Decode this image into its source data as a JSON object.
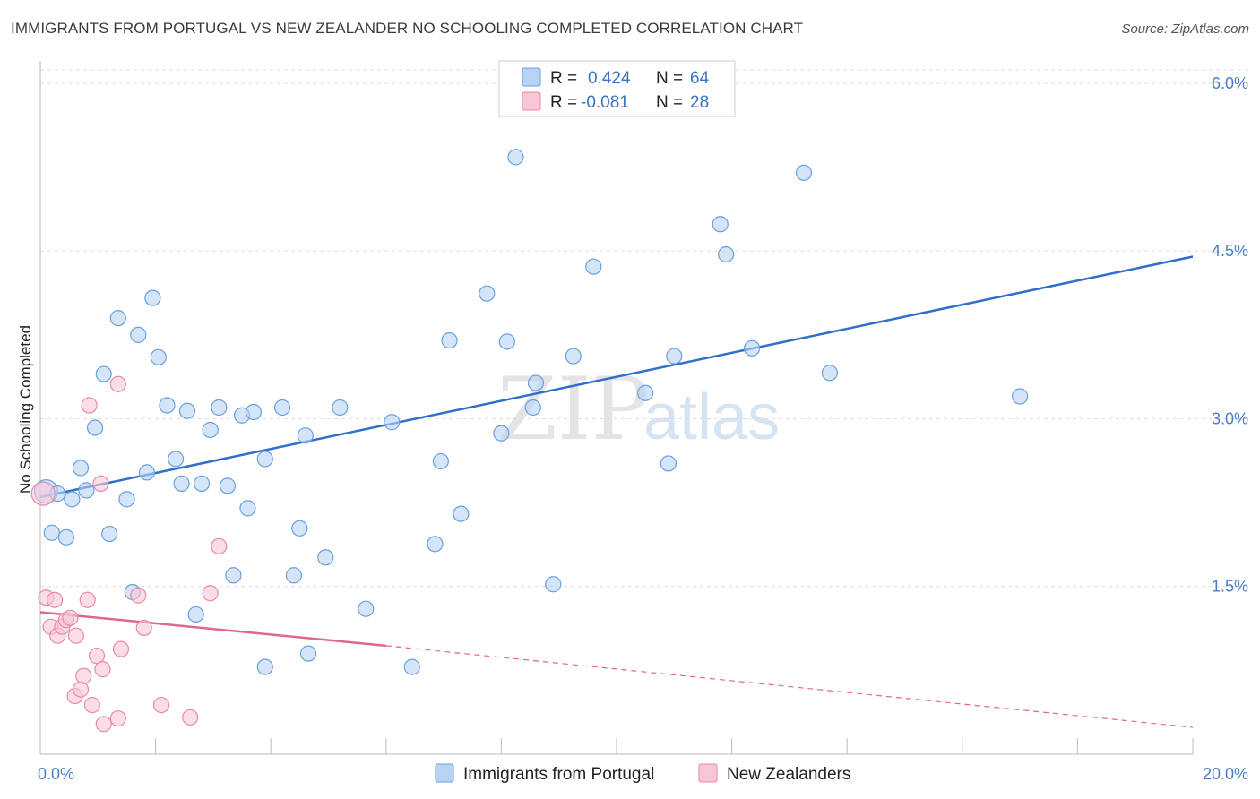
{
  "header": {
    "title": "IMMIGRANTS FROM PORTUGAL VS NEW ZEALANDER NO SCHOOLING COMPLETED CORRELATION CHART",
    "source": "Source: ZipAtlas.com"
  },
  "watermark": {
    "zip": "ZIP",
    "atlas": "atlas"
  },
  "legend": {
    "rows": [
      {
        "r_label": "R =",
        "r_value": "0.424",
        "n_label": "N =",
        "n_value": "64"
      },
      {
        "r_label": "R =",
        "r_value": "-0.081",
        "n_label": "N =",
        "n_value": "28"
      }
    ]
  },
  "colors": {
    "blue_fill": "#b8d4f5",
    "blue_stroke": "#6a9fdc",
    "blue_line": "#2f6ecb",
    "pink_fill": "#f8c6d6",
    "pink_stroke": "#e88aa8",
    "pink_line": "#e06690",
    "tick_text": "#4a7cc7",
    "grid": "#dddddd"
  },
  "chart_data": {
    "type": "scatter",
    "title": "IMMIGRANTS FROM PORTUGAL VS NEW ZEALANDER NO SCHOOLING COMPLETED CORRELATION CHART",
    "xlabel": "",
    "ylabel": "No Schooling Completed",
    "xlim": [
      0,
      20
    ],
    "ylim": [
      0,
      6.2
    ],
    "x_tick_labels": [
      "0.0%",
      "20.0%"
    ],
    "y_ticks": [
      1.5,
      3.0,
      4.5,
      6.0
    ],
    "y_tick_labels": [
      "1.5%",
      "3.0%",
      "4.5%",
      "6.0%"
    ],
    "grid": true,
    "legend_position": "top-center",
    "series": [
      {
        "name": "Immigrants from Portugal",
        "color": "#6a9fdc",
        "r": 0.424,
        "n": 64,
        "trend": {
          "x": [
            0,
            20
          ],
          "y": [
            2.3,
            4.45
          ]
        },
        "points": [
          [
            0.1,
            2.35
          ],
          [
            0.3,
            2.33
          ],
          [
            0.2,
            1.98
          ],
          [
            0.45,
            1.94
          ],
          [
            0.55,
            2.28
          ],
          [
            0.7,
            2.56
          ],
          [
            0.8,
            2.36
          ],
          [
            0.95,
            2.92
          ],
          [
            1.1,
            3.4
          ],
          [
            1.2,
            1.97
          ],
          [
            1.35,
            3.9
          ],
          [
            1.5,
            2.28
          ],
          [
            1.6,
            1.45
          ],
          [
            1.7,
            3.75
          ],
          [
            1.85,
            2.52
          ],
          [
            1.95,
            4.08
          ],
          [
            2.05,
            3.55
          ],
          [
            2.2,
            3.12
          ],
          [
            2.35,
            2.64
          ],
          [
            2.45,
            2.42
          ],
          [
            2.55,
            3.07
          ],
          [
            2.7,
            1.25
          ],
          [
            2.8,
            2.42
          ],
          [
            2.95,
            2.9
          ],
          [
            3.1,
            3.1
          ],
          [
            3.25,
            2.4
          ],
          [
            3.35,
            1.6
          ],
          [
            3.5,
            3.03
          ],
          [
            3.6,
            2.2
          ],
          [
            3.7,
            3.06
          ],
          [
            3.9,
            0.78
          ],
          [
            3.9,
            2.64
          ],
          [
            4.2,
            3.1
          ],
          [
            4.4,
            1.6
          ],
          [
            4.5,
            2.02
          ],
          [
            4.6,
            2.85
          ],
          [
            4.65,
            0.9
          ],
          [
            4.95,
            1.76
          ],
          [
            5.2,
            3.1
          ],
          [
            5.65,
            1.3
          ],
          [
            6.1,
            2.97
          ],
          [
            6.45,
            0.78
          ],
          [
            6.85,
            1.88
          ],
          [
            6.95,
            2.62
          ],
          [
            7.1,
            3.7
          ],
          [
            7.3,
            2.15
          ],
          [
            7.75,
            4.12
          ],
          [
            8.0,
            2.87
          ],
          [
            8.1,
            3.69
          ],
          [
            8.25,
            5.34
          ],
          [
            8.55,
            3.1
          ],
          [
            8.6,
            3.32
          ],
          [
            8.9,
            1.52
          ],
          [
            9.25,
            3.56
          ],
          [
            9.6,
            4.36
          ],
          [
            10.5,
            3.23
          ],
          [
            10.9,
            2.6
          ],
          [
            11.0,
            3.56
          ],
          [
            11.8,
            4.74
          ],
          [
            11.9,
            4.47
          ],
          [
            12.35,
            3.63
          ],
          [
            13.25,
            5.2
          ],
          [
            13.7,
            3.41
          ],
          [
            17.0,
            3.2
          ]
        ]
      },
      {
        "name": "New Zealanders",
        "color": "#e88aa8",
        "r": -0.081,
        "n": 28,
        "trend": {
          "x": [
            0,
            6
          ],
          "y": [
            1.27,
            0.97
          ],
          "dashed_to": [
            20,
            0.24
          ]
        },
        "points": [
          [
            0.05,
            2.33
          ],
          [
            0.1,
            1.4
          ],
          [
            0.18,
            1.14
          ],
          [
            0.25,
            1.38
          ],
          [
            0.3,
            1.06
          ],
          [
            0.38,
            1.14
          ],
          [
            0.45,
            1.2
          ],
          [
            0.52,
            1.22
          ],
          [
            0.6,
            0.52
          ],
          [
            0.62,
            1.06
          ],
          [
            0.7,
            0.58
          ],
          [
            0.75,
            0.7
          ],
          [
            0.82,
            1.38
          ],
          [
            0.85,
            3.12
          ],
          [
            0.9,
            0.44
          ],
          [
            0.98,
            0.88
          ],
          [
            1.05,
            2.42
          ],
          [
            1.08,
            0.76
          ],
          [
            1.1,
            0.27
          ],
          [
            1.4,
            0.94
          ],
          [
            1.35,
            0.32
          ],
          [
            1.35,
            3.31
          ],
          [
            1.7,
            1.42
          ],
          [
            1.8,
            1.13
          ],
          [
            2.1,
            0.44
          ],
          [
            2.6,
            0.33
          ],
          [
            2.95,
            1.44
          ],
          [
            3.1,
            1.86
          ]
        ]
      }
    ]
  },
  "bottom_legend": [
    {
      "label": "Immigrants from Portugal"
    },
    {
      "label": "New Zealanders"
    }
  ]
}
